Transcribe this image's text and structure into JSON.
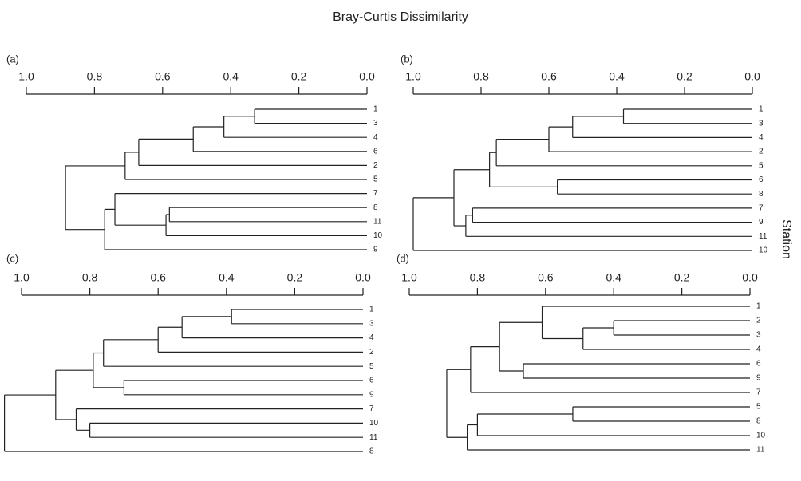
{
  "title": "Bray-Curtis Dissimilarity",
  "ylabel": "Station",
  "chart_data": [
    {
      "type": "dendrogram",
      "panel_label": "(a)",
      "xlim": [
        1,
        0
      ],
      "xticks": [
        {
          "value": 1,
          "label": "1.0"
        },
        0.8,
        0.6,
        0.4,
        0.2,
        {
          "value": 0,
          "label": "0.0"
        }
      ],
      "tree": {
        "height": 0.885,
        "children": [
          {
            "height": 0.71,
            "children": [
              {
                "height": 0.67,
                "children": [
                  {
                    "height": 0.51,
                    "children": [
                      {
                        "height": 0.42,
                        "children": [
                          {
                            "height": 0.33,
                            "children": [
                              "1",
                              "3"
                            ]
                          },
                          "4"
                        ]
                      },
                      "6"
                    ]
                  },
                  "2"
                ]
              },
              "5"
            ]
          },
          {
            "height": 0.77,
            "children": [
              {
                "height": 0.74,
                "children": [
                  "7",
                  {
                    "height": 0.59,
                    "children": [
                      {
                        "height": 0.58,
                        "children": [
                          "8",
                          "11"
                        ]
                      },
                      "10"
                    ]
                  }
                ]
              },
              "9"
            ]
          }
        ]
      }
    },
    {
      "type": "dendrogram",
      "panel_label": "(b)",
      "xlim": [
        1,
        0
      ],
      "xticks": [
        {
          "value": 1,
          "label": "1.0"
        },
        0.8,
        0.6,
        0.4,
        0.2,
        {
          "value": 0,
          "label": "0.0"
        }
      ],
      "tree": {
        "height": 1.0,
        "children": [
          {
            "height": 0.88,
            "children": [
              {
                "height": 0.775,
                "children": [
                  {
                    "height": 0.755,
                    "children": [
                      {
                        "height": 0.6,
                        "children": [
                          {
                            "height": 0.53,
                            "children": [
                              {
                                "height": 0.38,
                                "children": [
                                  "1",
                                  "3"
                                ]
                              },
                              "4"
                            ]
                          },
                          "2"
                        ]
                      },
                      "5"
                    ]
                  },
                  {
                    "height": 0.575,
                    "children": [
                      "6",
                      "8"
                    ]
                  }
                ]
              },
              {
                "height": 0.845,
                "children": [
                  {
                    "height": 0.825,
                    "children": [
                      "7",
                      "9"
                    ]
                  },
                  "11"
                ]
              }
            ]
          },
          "10"
        ]
      }
    },
    {
      "type": "dendrogram",
      "panel_label": "(c)",
      "xlim": [
        1,
        0
      ],
      "xticks": [
        {
          "value": 1,
          "label": "1.0"
        },
        0.8,
        0.6,
        0.4,
        0.2,
        {
          "value": 0,
          "label": "0.0"
        }
      ],
      "tree": {
        "height": 1.05,
        "children": [
          {
            "height": 0.9,
            "children": [
              {
                "height": 0.79,
                "children": [
                  {
                    "height": 0.76,
                    "children": [
                      {
                        "height": 0.6,
                        "children": [
                          {
                            "height": 0.53,
                            "children": [
                              {
                                "height": 0.385,
                                "children": [
                                  "1",
                                  "3"
                                ]
                              },
                              "4"
                            ]
                          },
                          "2"
                        ]
                      },
                      "5"
                    ]
                  },
                  {
                    "height": 0.7,
                    "children": [
                      "6",
                      "9"
                    ]
                  }
                ]
              },
              {
                "height": 0.84,
                "children": [
                  "7",
                  {
                    "height": 0.8,
                    "children": [
                      "10",
                      "11"
                    ]
                  }
                ]
              }
            ]
          },
          "8"
        ]
      }
    },
    {
      "type": "dendrogram",
      "panel_label": "(d)",
      "xlim": [
        1,
        0
      ],
      "xticks": [
        {
          "value": 1,
          "label": "1.0"
        },
        0.8,
        0.6,
        0.4,
        0.2,
        {
          "value": 0,
          "label": "0.0"
        }
      ],
      "tree": {
        "height": 0.89,
        "children": [
          {
            "height": 0.82,
            "children": [
              {
                "height": 0.735,
                "children": [
                  {
                    "height": 0.61,
                    "children": [
                      "1",
                      {
                        "height": 0.49,
                        "children": [
                          {
                            "height": 0.4,
                            "children": [
                              "2",
                              "3"
                            ]
                          },
                          "4"
                        ]
                      }
                    ]
                  },
                  {
                    "height": 0.665,
                    "children": [
                      "6",
                      "9"
                    ]
                  }
                ]
              },
              "7"
            ]
          },
          {
            "height": 0.83,
            "children": [
              {
                "height": 0.8,
                "children": [
                  {
                    "height": 0.52,
                    "children": [
                      "5",
                      "8"
                    ]
                  },
                  "10"
                ]
              },
              "11"
            ]
          }
        ]
      }
    }
  ]
}
